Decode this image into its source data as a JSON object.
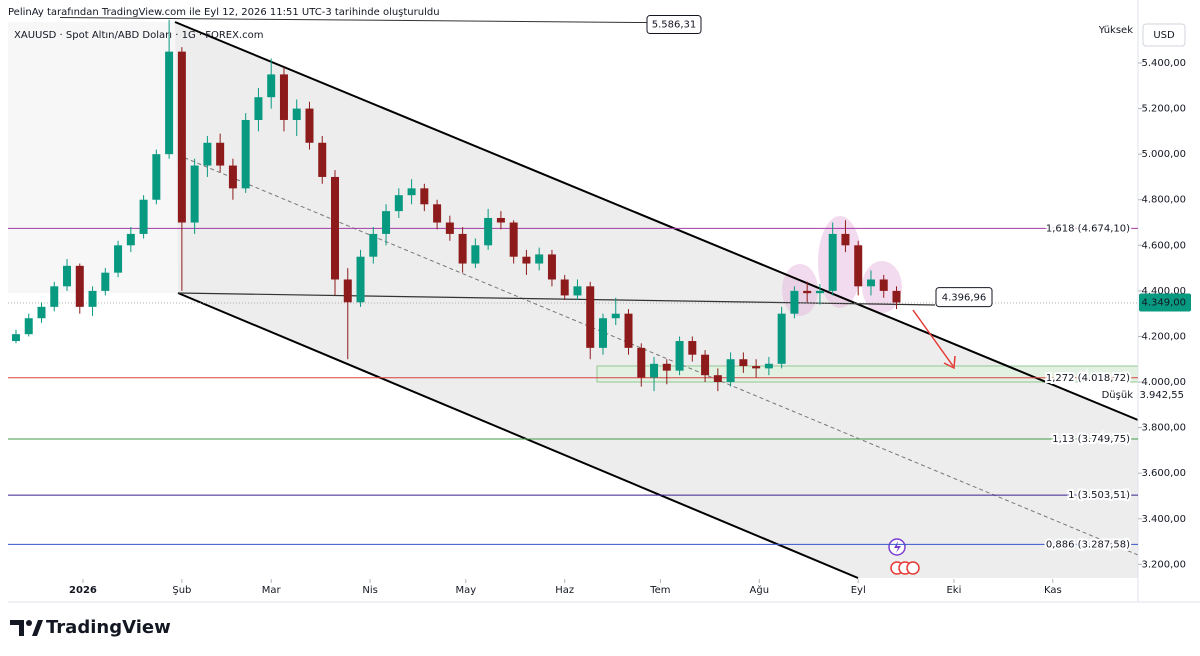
{
  "header": {
    "credit": "PelinAy tarafından TradingView.com ile Eyl 12, 2026 11:51 UTC-3 tarihinde oluşturuldu",
    "symbol": "XAUUSD · Spot Altın/ABD Doları · 1G · FOREX.com"
  },
  "chart_data": {
    "type": "candlestick",
    "x": [
      -21,
      -17,
      -13,
      -9,
      -5,
      -1,
      3,
      7,
      11,
      15,
      19,
      23,
      27,
      31,
      35,
      39,
      43,
      47,
      51,
      55,
      59,
      63,
      67,
      71,
      75,
      79,
      83,
      87,
      91,
      95,
      99,
      103,
      107,
      111,
      115,
      119,
      123,
      127,
      131,
      135,
      139,
      143,
      147,
      151,
      155,
      159,
      163,
      167,
      171,
      175,
      179,
      183,
      187,
      191,
      195,
      199,
      203,
      207,
      211,
      215,
      219,
      223,
      227,
      231,
      235,
      239,
      243,
      247,
      251,
      255
    ],
    "ohlc": [
      [
        4180,
        4230,
        4170,
        4210
      ],
      [
        4210,
        4300,
        4200,
        4280
      ],
      [
        4280,
        4350,
        4260,
        4330
      ],
      [
        4330,
        4440,
        4310,
        4420
      ],
      [
        4420,
        4540,
        4400,
        4510
      ],
      [
        4510,
        4520,
        4300,
        4330
      ],
      [
        4330,
        4420,
        4290,
        4400
      ],
      [
        4400,
        4500,
        4380,
        4480
      ],
      [
        4480,
        4620,
        4460,
        4600
      ],
      [
        4600,
        4680,
        4570,
        4650
      ],
      [
        4650,
        4820,
        4630,
        4800
      ],
      [
        4800,
        5020,
        4780,
        5000
      ],
      [
        5000,
        5590,
        4980,
        5450
      ],
      [
        5450,
        5470,
        4400,
        4700
      ],
      [
        4700,
        4980,
        4650,
        4950
      ],
      [
        4950,
        5080,
        4900,
        5050
      ],
      [
        5050,
        5090,
        4920,
        4950
      ],
      [
        4950,
        4980,
        4800,
        4850
      ],
      [
        4850,
        5180,
        4830,
        5150
      ],
      [
        5150,
        5290,
        5100,
        5250
      ],
      [
        5250,
        5420,
        5200,
        5350
      ],
      [
        5350,
        5380,
        5100,
        5150
      ],
      [
        5150,
        5240,
        5080,
        5200
      ],
      [
        5200,
        5230,
        5020,
        5050
      ],
      [
        5050,
        5080,
        4870,
        4900
      ],
      [
        4900,
        4930,
        4380,
        4450
      ],
      [
        4450,
        4500,
        4100,
        4350
      ],
      [
        4350,
        4580,
        4330,
        4550
      ],
      [
        4550,
        4680,
        4520,
        4650
      ],
      [
        4650,
        4780,
        4600,
        4750
      ],
      [
        4750,
        4850,
        4720,
        4820
      ],
      [
        4820,
        4890,
        4780,
        4850
      ],
      [
        4850,
        4870,
        4750,
        4780
      ],
      [
        4780,
        4800,
        4670,
        4700
      ],
      [
        4700,
        4730,
        4620,
        4650
      ],
      [
        4650,
        4680,
        4480,
        4520
      ],
      [
        4520,
        4630,
        4500,
        4600
      ],
      [
        4600,
        4760,
        4580,
        4720
      ],
      [
        4720,
        4750,
        4670,
        4700
      ],
      [
        4700,
        4710,
        4520,
        4550
      ],
      [
        4550,
        4580,
        4470,
        4520
      ],
      [
        4520,
        4590,
        4490,
        4560
      ],
      [
        4560,
        4580,
        4420,
        4450
      ],
      [
        4450,
        4470,
        4360,
        4380
      ],
      [
        4380,
        4450,
        4360,
        4420
      ],
      [
        4420,
        4440,
        4100,
        4150
      ],
      [
        4150,
        4300,
        4120,
        4280
      ],
      [
        4280,
        4370,
        4250,
        4300
      ],
      [
        4300,
        4320,
        4120,
        4150
      ],
      [
        4150,
        4170,
        3980,
        4020
      ],
      [
        4020,
        4110,
        3960,
        4080
      ],
      [
        4080,
        4100,
        3990,
        4050
      ],
      [
        4050,
        4200,
        4030,
        4180
      ],
      [
        4180,
        4200,
        4090,
        4120
      ],
      [
        4120,
        4140,
        4000,
        4030
      ],
      [
        4030,
        4060,
        3960,
        4000
      ],
      [
        4000,
        4130,
        3980,
        4100
      ],
      [
        4100,
        4130,
        4040,
        4070
      ],
      [
        4070,
        4100,
        4020,
        4060
      ],
      [
        4060,
        4110,
        4030,
        4080
      ],
      [
        4080,
        4330,
        4060,
        4300
      ],
      [
        4300,
        4420,
        4280,
        4400
      ],
      [
        4400,
        4440,
        4350,
        4390
      ],
      [
        4390,
        4430,
        4340,
        4400
      ],
      [
        4400,
        4700,
        4380,
        4650
      ],
      [
        4650,
        4710,
        4570,
        4600
      ],
      [
        4600,
        4620,
        4380,
        4420
      ],
      [
        4420,
        4490,
        4380,
        4450
      ],
      [
        4450,
        4470,
        4370,
        4400
      ],
      [
        4400,
        4420,
        4320,
        4349
      ]
    ],
    "up_color": "#089981",
    "down_color": "#8e1b1b",
    "xlim": [
      -23.5,
      330.7
    ],
    "xticks": [
      {
        "value": 0,
        "label": "2026"
      },
      {
        "value": 31,
        "label": "Şub"
      },
      {
        "value": 59,
        "label": "Mar"
      },
      {
        "value": 90,
        "label": "Nis"
      },
      {
        "value": 120,
        "label": "May"
      },
      {
        "value": 151,
        "label": "Haz"
      },
      {
        "value": 181,
        "label": "Tem"
      },
      {
        "value": 212,
        "label": "Ağu"
      },
      {
        "value": 243,
        "label": "Eyl"
      },
      {
        "value": 273,
        "label": "Eki"
      },
      {
        "value": 304,
        "label": "Kas"
      }
    ],
    "ylim": [
      3140,
      5580
    ],
    "yticks": [
      {
        "value": 3200,
        "label": "3.200,00"
      },
      {
        "value": 3400,
        "label": "3.400,00"
      },
      {
        "value": 3600,
        "label": "3.600,00"
      },
      {
        "value": 3800,
        "label": "3.800,00"
      },
      {
        "value": 4000,
        "label": "4.000,00"
      },
      {
        "value": 4200,
        "label": "4.200,00"
      },
      {
        "value": 4400,
        "label": "4.400,00"
      },
      {
        "value": 4600,
        "label": "4.600,00"
      },
      {
        "value": 4800,
        "label": "4.800,00"
      },
      {
        "value": 5000,
        "label": "5.000,00"
      },
      {
        "value": 5200,
        "label": "5.200,00"
      },
      {
        "value": 5400,
        "label": "5.400,00"
      }
    ],
    "levels": [
      {
        "value": 4674.1,
        "label": "1,618 (4.674,10)",
        "color": "#a33aa3"
      },
      {
        "value": 4018.72,
        "label": "1,272 (4.018,72)",
        "color": "#d84343"
      },
      {
        "value": 3749.75,
        "label": "1,13 (3.749,75)",
        "color": "#3f9a44"
      },
      {
        "value": 3503.51,
        "label": "1 (3.503,51)",
        "color": "#3a1f8f"
      },
      {
        "value": 3287.58,
        "label": "0,886 (3.287,58)",
        "color": "#3656c9"
      }
    ],
    "last_price": {
      "value": 4349,
      "label": "4.349,00",
      "color": "#089981"
    },
    "high": {
      "name": "Yüksek",
      "value": 5586.31,
      "label": "5.586,31"
    },
    "low": {
      "name": "Düşük",
      "value": 3942.55,
      "label": "3.942,55"
    },
    "callout": {
      "value": 4396.96,
      "label": "4.396,96"
    },
    "currency": "USD"
  },
  "footer": {
    "brand": "TradingView"
  }
}
